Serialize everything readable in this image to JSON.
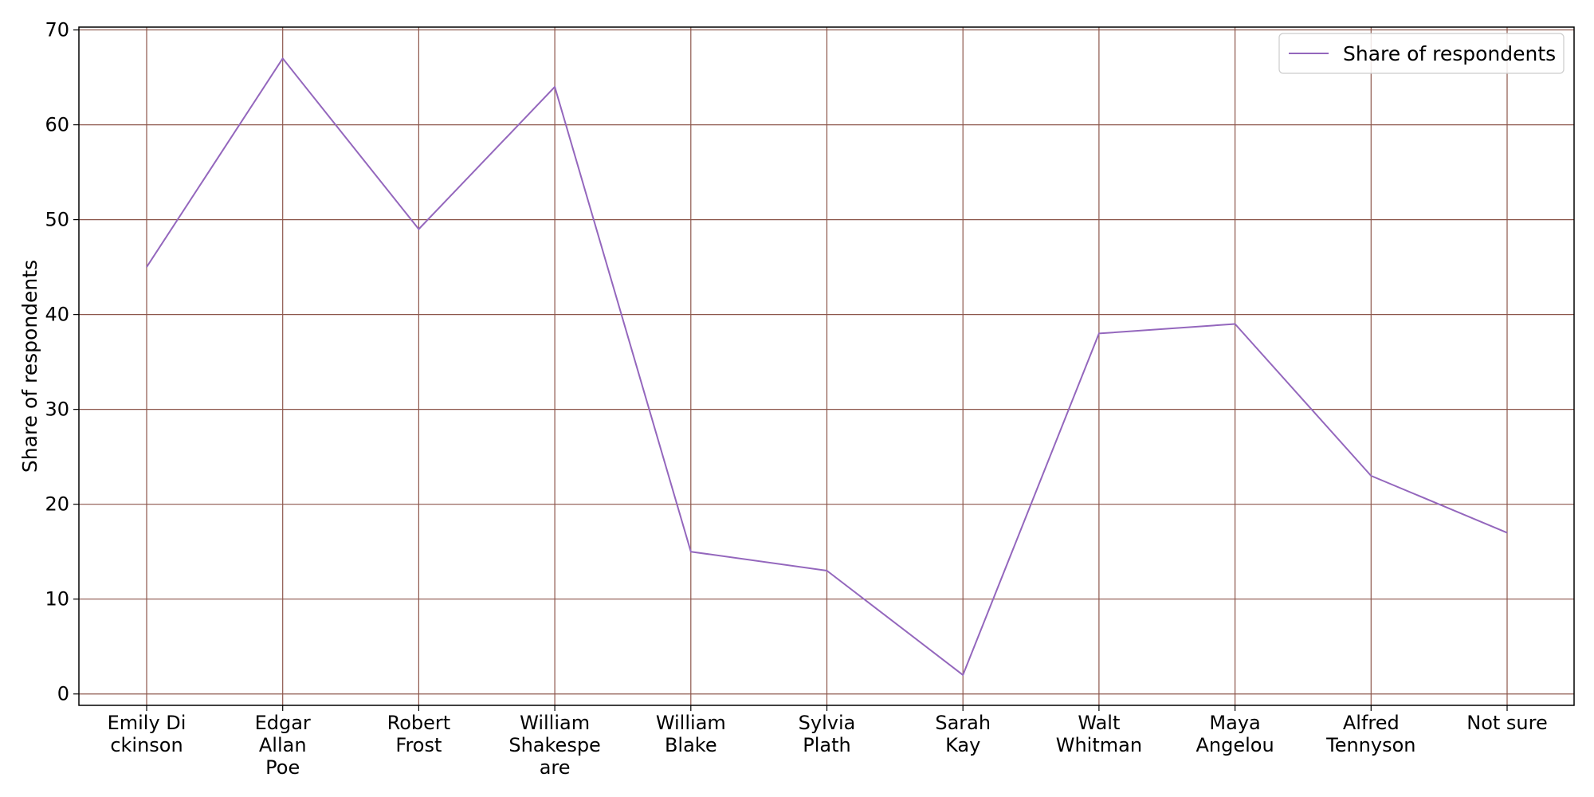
{
  "chart_data": {
    "type": "line",
    "categories": [
      [
        "Emily Di",
        "ckinson"
      ],
      [
        "Edgar",
        "Allan",
        "Poe"
      ],
      [
        "Robert",
        "Frost"
      ],
      [
        "William",
        "Shakespe",
        "are"
      ],
      [
        "William",
        "Blake"
      ],
      [
        "Sylvia",
        "Plath"
      ],
      [
        "Sarah",
        "Kay"
      ],
      [
        "Walt",
        "Whitman"
      ],
      [
        "Maya",
        "Angelou"
      ],
      [
        "Alfred",
        "Tennyson"
      ],
      [
        "Not sure"
      ]
    ],
    "series": [
      {
        "name": "Share of respondents",
        "values": [
          45,
          67,
          49,
          64,
          15,
          13,
          2,
          38,
          39,
          23,
          17
        ]
      }
    ],
    "title": "",
    "xlabel": "",
    "ylabel": "Share of respondents",
    "ylim": [
      -1.2,
      70.3
    ],
    "yticks": [
      0,
      10,
      20,
      30,
      40,
      50,
      60,
      70
    ],
    "grid": true,
    "legend_position": "top-right",
    "colors": {
      "line": "#9467bd",
      "grid": "#8c564b",
      "axis": "#000000"
    }
  }
}
